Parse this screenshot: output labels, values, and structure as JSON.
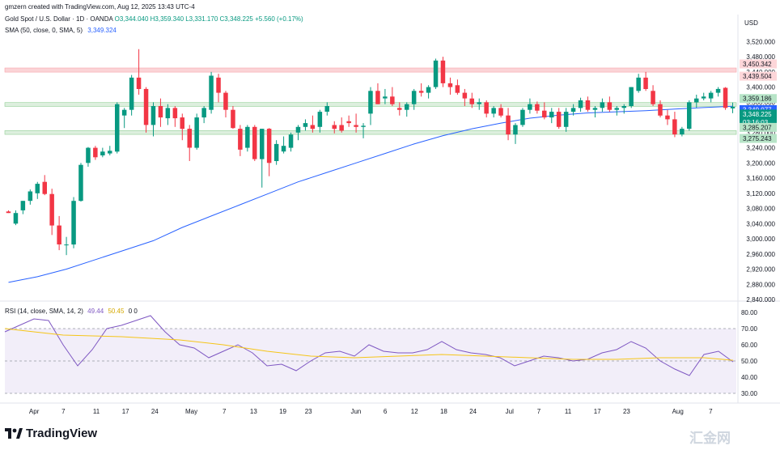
{
  "header": {
    "creator": "gmzern created with TradingView.com, Aug 12, 2025 13:43 UTC-4",
    "symbol": "Gold Spot / U.S. Dollar · 1D · OANDA",
    "ohlc": "O3,344.040  H3,359.340  L3,331.170  C3,348.225  +5.560 (+0.17%)",
    "sma_name": "SMA (50, close, 0, SMA, 5)",
    "sma_value": "3,349.324",
    "rsi_name": "RSI (14, close, SMA, 14, 2)",
    "rsi_value": "49.44",
    "rsi_ma_value": "50.45",
    "rsi_extra": "0  0"
  },
  "axis": {
    "currency": "USD",
    "price_ticks": [
      "3,520.000",
      "3,480.000",
      "3,440.000",
      "3,400.000",
      "3,360.000",
      "3,320.000",
      "3,280.000",
      "3,240.000",
      "3,200.000",
      "3,160.000",
      "3,120.000",
      "3,080.000",
      "3,040.000",
      "3,000.000",
      "2,960.000",
      "2,920.000",
      "2,880.000",
      "2,840.000"
    ],
    "rsi_ticks": [
      "80.00",
      "70.00",
      "60.00",
      "50.00",
      "40.00",
      "30.00"
    ],
    "time_ticks": [
      "Apr",
      "7",
      "11",
      "17",
      "24",
      "May",
      "7",
      "13",
      "19",
      "23",
      "Jun",
      "6",
      "12",
      "18",
      "24",
      "Jul",
      "7",
      "11",
      "17",
      "23",
      "Aug",
      "7"
    ]
  },
  "price_tags": {
    "zone_top_high": "3,450.342",
    "zone_top_low": "3,439.504",
    "level_a": "3,359.186",
    "level_b": "3,349.077",
    "last": "3,348.225",
    "countdown": "03:16:03",
    "zone_low_high": "3,285.207",
    "zone_low_low": "3,275.243"
  },
  "colors": {
    "up": "#089981",
    "down": "#f23645",
    "sma": "#2962ff",
    "rsi": "#7e57c2",
    "rsi_ma": "#f5c518",
    "zone_red": "#f7a1a8",
    "zone_green": "#4caf50"
  },
  "brand": "TradingView",
  "watermark": "汇金网",
  "chart_data": {
    "type": "candlestick",
    "title": "Gold Spot / U.S. Dollar · 1D · OANDA",
    "price_range": [
      2840,
      3540
    ],
    "rsi_range": [
      25,
      85
    ],
    "candles": [
      {
        "o": 3072,
        "h": 3075,
        "l": 3068,
        "c": 3068
      },
      {
        "o": 3040,
        "h": 3075,
        "l": 3036,
        "c": 3068
      },
      {
        "o": 3075,
        "h": 3100,
        "l": 3065,
        "c": 3100
      },
      {
        "o": 3100,
        "h": 3130,
        "l": 3090,
        "c": 3125
      },
      {
        "o": 3120,
        "h": 3150,
        "l": 3105,
        "c": 3145
      },
      {
        "o": 3150,
        "h": 3168,
        "l": 3115,
        "c": 3118
      },
      {
        "o": 3118,
        "h": 3132,
        "l": 3010,
        "c": 3035
      },
      {
        "o": 3035,
        "h": 3060,
        "l": 2970,
        "c": 2985
      },
      {
        "o": 2985,
        "h": 3005,
        "l": 2957,
        "c": 2985
      },
      {
        "o": 2985,
        "h": 3110,
        "l": 2975,
        "c": 3100
      },
      {
        "o": 3100,
        "h": 3200,
        "l": 3098,
        "c": 3195
      },
      {
        "o": 3200,
        "h": 3242,
        "l": 3190,
        "c": 3240
      },
      {
        "o": 3240,
        "h": 3245,
        "l": 3208,
        "c": 3215
      },
      {
        "o": 3220,
        "h": 3240,
        "l": 3215,
        "c": 3230
      },
      {
        "o": 3225,
        "h": 3245,
        "l": 3220,
        "c": 3232
      },
      {
        "o": 3230,
        "h": 3360,
        "l": 3225,
        "c": 3355
      },
      {
        "o": 3325,
        "h": 3345,
        "l": 3292,
        "c": 3340
      },
      {
        "o": 3340,
        "h": 3432,
        "l": 3325,
        "c": 3425
      },
      {
        "o": 3425,
        "h": 3500,
        "l": 3380,
        "c": 3395
      },
      {
        "o": 3395,
        "h": 3400,
        "l": 3280,
        "c": 3300
      },
      {
        "o": 3300,
        "h": 3360,
        "l": 3270,
        "c": 3350
      },
      {
        "o": 3350,
        "h": 3370,
        "l": 3295,
        "c": 3320
      },
      {
        "o": 3318,
        "h": 3355,
        "l": 3300,
        "c": 3345
      },
      {
        "o": 3345,
        "h": 3350,
        "l": 3295,
        "c": 3318
      },
      {
        "o": 3320,
        "h": 3330,
        "l": 3260,
        "c": 3290
      },
      {
        "o": 3290,
        "h": 3300,
        "l": 3205,
        "c": 3240
      },
      {
        "o": 3240,
        "h": 3330,
        "l": 3235,
        "c": 3320
      },
      {
        "o": 3320,
        "h": 3350,
        "l": 3305,
        "c": 3345
      },
      {
        "o": 3340,
        "h": 3440,
        "l": 3330,
        "c": 3430
      },
      {
        "o": 3425,
        "h": 3435,
        "l": 3360,
        "c": 3385
      },
      {
        "o": 3385,
        "h": 3390,
        "l": 3320,
        "c": 3340
      },
      {
        "o": 3340,
        "h": 3350,
        "l": 3290,
        "c": 3292
      },
      {
        "o": 3290,
        "h": 3300,
        "l": 3218,
        "c": 3235
      },
      {
        "o": 3240,
        "h": 3300,
        "l": 3230,
        "c": 3295
      },
      {
        "o": 3295,
        "h": 3300,
        "l": 3205,
        "c": 3210
      },
      {
        "o": 3210,
        "h": 3290,
        "l": 3135,
        "c": 3290
      },
      {
        "o": 3290,
        "h": 3292,
        "l": 3165,
        "c": 3200
      },
      {
        "o": 3205,
        "h": 3260,
        "l": 3195,
        "c": 3250
      },
      {
        "o": 3230,
        "h": 3270,
        "l": 3225,
        "c": 3245
      },
      {
        "o": 3240,
        "h": 3280,
        "l": 3230,
        "c": 3275
      },
      {
        "o": 3280,
        "h": 3300,
        "l": 3260,
        "c": 3295
      },
      {
        "o": 3295,
        "h": 3315,
        "l": 3285,
        "c": 3305
      },
      {
        "o": 3300,
        "h": 3325,
        "l": 3280,
        "c": 3290
      },
      {
        "o": 3295,
        "h": 3340,
        "l": 3280,
        "c": 3335
      },
      {
        "o": 3335,
        "h": 3360,
        "l": 3325,
        "c": 3350
      },
      {
        "o": 3300,
        "h": 3310,
        "l": 3278,
        "c": 3290
      },
      {
        "o": 3300,
        "h": 3320,
        "l": 3280,
        "c": 3285
      },
      {
        "o": 3310,
        "h": 3325,
        "l": 3295,
        "c": 3305
      },
      {
        "o": 3300,
        "h": 3330,
        "l": 3280,
        "c": 3295
      },
      {
        "o": 3295,
        "h": 3305,
        "l": 3265,
        "c": 3298
      },
      {
        "o": 3330,
        "h": 3400,
        "l": 3300,
        "c": 3390
      },
      {
        "o": 3390,
        "h": 3410,
        "l": 3355,
        "c": 3355
      },
      {
        "o": 3370,
        "h": 3395,
        "l": 3355,
        "c": 3375
      },
      {
        "o": 3375,
        "h": 3400,
        "l": 3350,
        "c": 3355
      },
      {
        "o": 3345,
        "h": 3360,
        "l": 3325,
        "c": 3340
      },
      {
        "o": 3340,
        "h": 3360,
        "l": 3322,
        "c": 3355
      },
      {
        "o": 3355,
        "h": 3395,
        "l": 3340,
        "c": 3390
      },
      {
        "o": 3390,
        "h": 3410,
        "l": 3375,
        "c": 3385
      },
      {
        "o": 3385,
        "h": 3405,
        "l": 3370,
        "c": 3400
      },
      {
        "o": 3400,
        "h": 3475,
        "l": 3395,
        "c": 3470
      },
      {
        "o": 3470,
        "h": 3480,
        "l": 3400,
        "c": 3410
      },
      {
        "o": 3410,
        "h": 3425,
        "l": 3380,
        "c": 3400
      },
      {
        "o": 3405,
        "h": 3420,
        "l": 3380,
        "c": 3385
      },
      {
        "o": 3385,
        "h": 3395,
        "l": 3350,
        "c": 3370
      },
      {
        "o": 3370,
        "h": 3385,
        "l": 3345,
        "c": 3355
      },
      {
        "o": 3355,
        "h": 3370,
        "l": 3340,
        "c": 3360
      },
      {
        "o": 3360,
        "h": 3365,
        "l": 3320,
        "c": 3330
      },
      {
        "o": 3330,
        "h": 3350,
        "l": 3320,
        "c": 3345
      },
      {
        "o": 3345,
        "h": 3355,
        "l": 3320,
        "c": 3325
      },
      {
        "o": 3325,
        "h": 3345,
        "l": 3260,
        "c": 3275
      },
      {
        "o": 3275,
        "h": 3305,
        "l": 3250,
        "c": 3300
      },
      {
        "o": 3300,
        "h": 3345,
        "l": 3295,
        "c": 3340
      },
      {
        "o": 3340,
        "h": 3370,
        "l": 3330,
        "c": 3355
      },
      {
        "o": 3355,
        "h": 3362,
        "l": 3330,
        "c": 3338
      },
      {
        "o": 3338,
        "h": 3360,
        "l": 3315,
        "c": 3320
      },
      {
        "o": 3320,
        "h": 3345,
        "l": 3305,
        "c": 3335
      },
      {
        "o": 3335,
        "h": 3345,
        "l": 3290,
        "c": 3295
      },
      {
        "o": 3295,
        "h": 3345,
        "l": 3282,
        "c": 3335
      },
      {
        "o": 3335,
        "h": 3355,
        "l": 3325,
        "c": 3345
      },
      {
        "o": 3345,
        "h": 3372,
        "l": 3335,
        "c": 3365
      },
      {
        "o": 3365,
        "h": 3375,
        "l": 3335,
        "c": 3340
      },
      {
        "o": 3340,
        "h": 3350,
        "l": 3320,
        "c": 3345
      },
      {
        "o": 3345,
        "h": 3370,
        "l": 3335,
        "c": 3360
      },
      {
        "o": 3360,
        "h": 3375,
        "l": 3335,
        "c": 3340
      },
      {
        "o": 3340,
        "h": 3350,
        "l": 3325,
        "c": 3345
      },
      {
        "o": 3345,
        "h": 3355,
        "l": 3330,
        "c": 3350
      },
      {
        "o": 3350,
        "h": 3400,
        "l": 3345,
        "c": 3400
      },
      {
        "o": 3390,
        "h": 3435,
        "l": 3385,
        "c": 3425
      },
      {
        "o": 3425,
        "h": 3440,
        "l": 3390,
        "c": 3395
      },
      {
        "o": 3390,
        "h": 3405,
        "l": 3350,
        "c": 3355
      },
      {
        "o": 3355,
        "h": 3365,
        "l": 3320,
        "c": 3325
      },
      {
        "o": 3325,
        "h": 3340,
        "l": 3300,
        "c": 3315
      },
      {
        "o": 3315,
        "h": 3335,
        "l": 3268,
        "c": 3275
      },
      {
        "o": 3275,
        "h": 3295,
        "l": 3270,
        "c": 3290
      },
      {
        "o": 3290,
        "h": 3365,
        "l": 3285,
        "c": 3360
      },
      {
        "o": 3360,
        "h": 3380,
        "l": 3345,
        "c": 3370
      },
      {
        "o": 3370,
        "h": 3385,
        "l": 3365,
        "c": 3375
      },
      {
        "o": 3370,
        "h": 3390,
        "l": 3360,
        "c": 3385
      },
      {
        "o": 3385,
        "h": 3400,
        "l": 3375,
        "c": 3395
      },
      {
        "o": 3398,
        "h": 3400,
        "l": 3340,
        "c": 3345
      },
      {
        "o": 3344.04,
        "h": 3359.34,
        "l": 3331.17,
        "c": 3348.225
      }
    ],
    "sma50": [
      [
        0,
        2885
      ],
      [
        4,
        2900
      ],
      [
        8,
        2920
      ],
      [
        12,
        2945
      ],
      [
        16,
        2970
      ],
      [
        20,
        2995
      ],
      [
        24,
        3030
      ],
      [
        28,
        3060
      ],
      [
        32,
        3090
      ],
      [
        36,
        3120
      ],
      [
        40,
        3150
      ],
      [
        44,
        3175
      ],
      [
        48,
        3200
      ],
      [
        52,
        3225
      ],
      [
        56,
        3250
      ],
      [
        60,
        3272
      ],
      [
        64,
        3290
      ],
      [
        68,
        3305
      ],
      [
        72,
        3318
      ],
      [
        76,
        3326
      ],
      [
        80,
        3332
      ],
      [
        84,
        3335
      ],
      [
        88,
        3338
      ],
      [
        92,
        3342
      ],
      [
        96,
        3346
      ],
      [
        100,
        3349.324
      ]
    ],
    "rsi": [
      [
        0,
        68
      ],
      [
        2,
        72
      ],
      [
        4,
        76
      ],
      [
        6,
        75
      ],
      [
        8,
        60
      ],
      [
        10,
        47
      ],
      [
        12,
        57
      ],
      [
        14,
        70
      ],
      [
        16,
        72
      ],
      [
        18,
        75
      ],
      [
        20,
        78
      ],
      [
        22,
        68
      ],
      [
        24,
        60
      ],
      [
        26,
        58
      ],
      [
        28,
        52
      ],
      [
        30,
        56
      ],
      [
        32,
        60
      ],
      [
        34,
        55
      ],
      [
        36,
        47
      ],
      [
        38,
        48
      ],
      [
        40,
        44
      ],
      [
        42,
        50
      ],
      [
        44,
        55
      ],
      [
        46,
        56
      ],
      [
        48,
        53
      ],
      [
        50,
        60
      ],
      [
        52,
        56
      ],
      [
        54,
        55
      ],
      [
        56,
        55
      ],
      [
        58,
        57
      ],
      [
        60,
        62
      ],
      [
        62,
        57
      ],
      [
        64,
        55
      ],
      [
        66,
        54
      ],
      [
        68,
        52
      ],
      [
        70,
        47
      ],
      [
        72,
        50
      ],
      [
        74,
        53
      ],
      [
        76,
        52
      ],
      [
        78,
        50
      ],
      [
        80,
        51
      ],
      [
        82,
        55
      ],
      [
        84,
        57
      ],
      [
        86,
        62
      ],
      [
        88,
        58
      ],
      [
        90,
        50
      ],
      [
        92,
        45
      ],
      [
        94,
        41
      ],
      [
        96,
        54
      ],
      [
        98,
        56
      ],
      [
        100,
        49.44
      ]
    ],
    "rsi_ma": [
      [
        0,
        70
      ],
      [
        8,
        66
      ],
      [
        16,
        65
      ],
      [
        24,
        63
      ],
      [
        30,
        60
      ],
      [
        36,
        56
      ],
      [
        42,
        53
      ],
      [
        48,
        52
      ],
      [
        54,
        53
      ],
      [
        60,
        54
      ],
      [
        66,
        53
      ],
      [
        72,
        52
      ],
      [
        78,
        51
      ],
      [
        84,
        51
      ],
      [
        90,
        52
      ],
      [
        96,
        52
      ],
      [
        100,
        50.45
      ]
    ],
    "zones": {
      "red": [
        3439.504,
        3450.342
      ],
      "green_top": [
        3349.077,
        3359.186
      ],
      "green_bottom": [
        3275.243,
        3285.207
      ]
    }
  }
}
